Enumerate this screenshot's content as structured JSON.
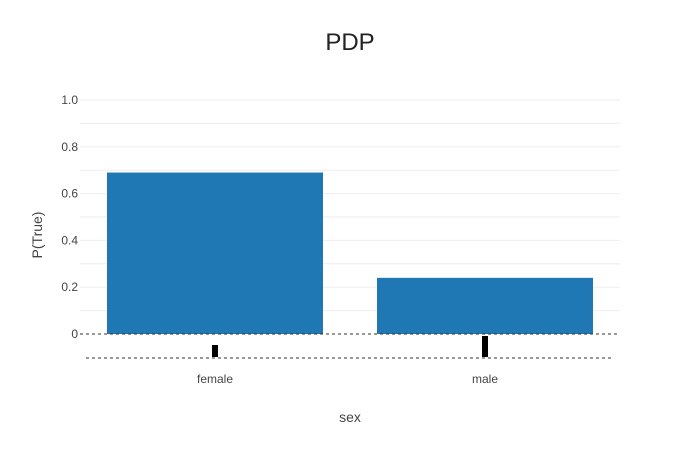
{
  "chart_data": {
    "type": "bar",
    "title": "PDP",
    "xlabel": "sex",
    "ylabel": "P(True)",
    "categories": [
      "female",
      "male"
    ],
    "values": [
      0.69,
      0.24
    ],
    "ylim": [
      0,
      1.0
    ],
    "yticks": [
      0,
      0.2,
      0.4,
      0.6,
      0.8,
      1.0
    ],
    "ytick_labels": [
      "0",
      "0.2",
      "0.4",
      "0.6",
      "0.8",
      "1.0"
    ],
    "grid": true,
    "bar_color": "#1f77b4",
    "zero_line": "dashed",
    "rug_markers": [
      0.5,
      1.0
    ]
  }
}
